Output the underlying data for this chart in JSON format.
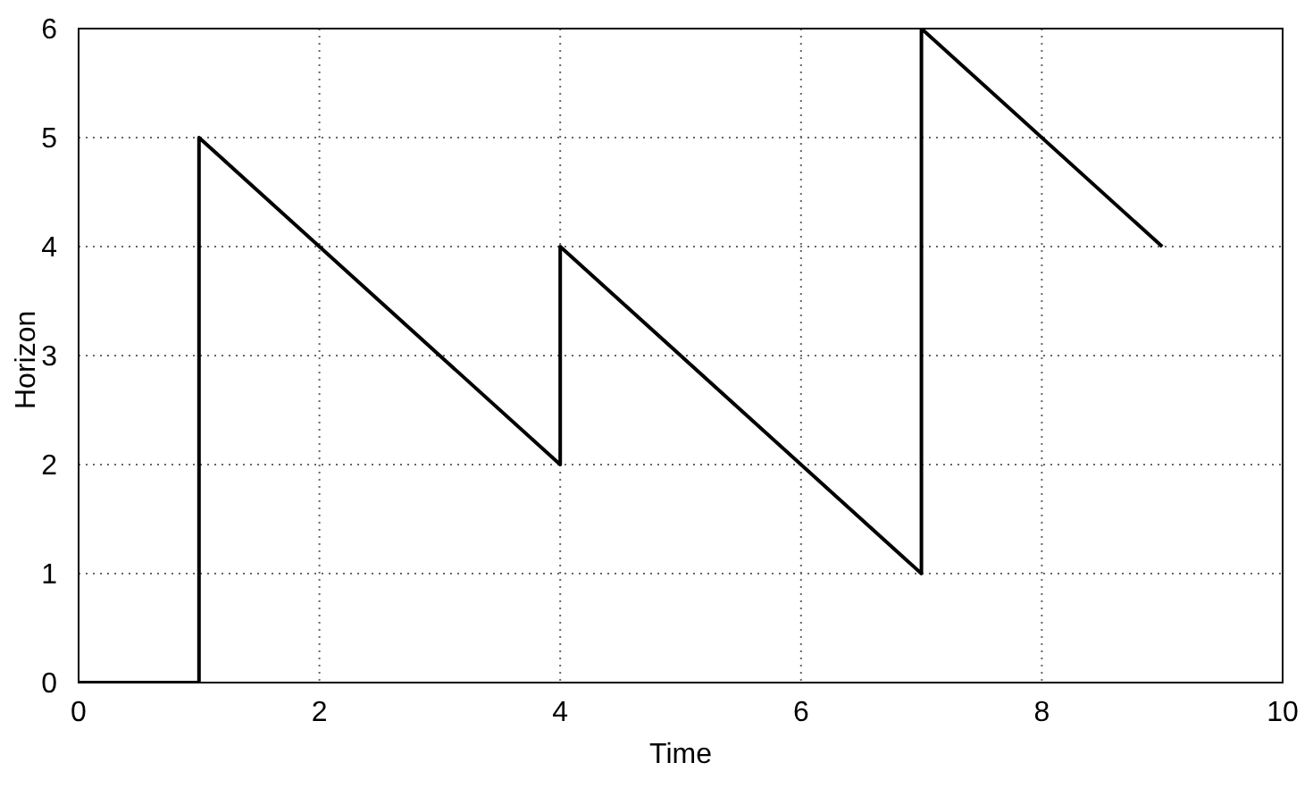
{
  "chart_data": {
    "type": "line",
    "xlabel": "Time",
    "ylabel": "Horizon",
    "x": [
      0,
      1,
      1,
      4,
      4,
      7,
      7,
      9
    ],
    "series": [
      {
        "color": "#000000",
        "values": [
          0,
          0,
          5,
          2,
          4,
          1,
          6,
          4
        ]
      }
    ],
    "xlim": [
      0,
      10
    ],
    "xticks": [
      0,
      2,
      4,
      6,
      8,
      10
    ],
    "ylim": [
      0,
      6
    ],
    "yticks": [
      0,
      1,
      2,
      3,
      4,
      5,
      6
    ],
    "grid": true,
    "legend": false,
    "marker": "none",
    "line_style": "solid"
  }
}
